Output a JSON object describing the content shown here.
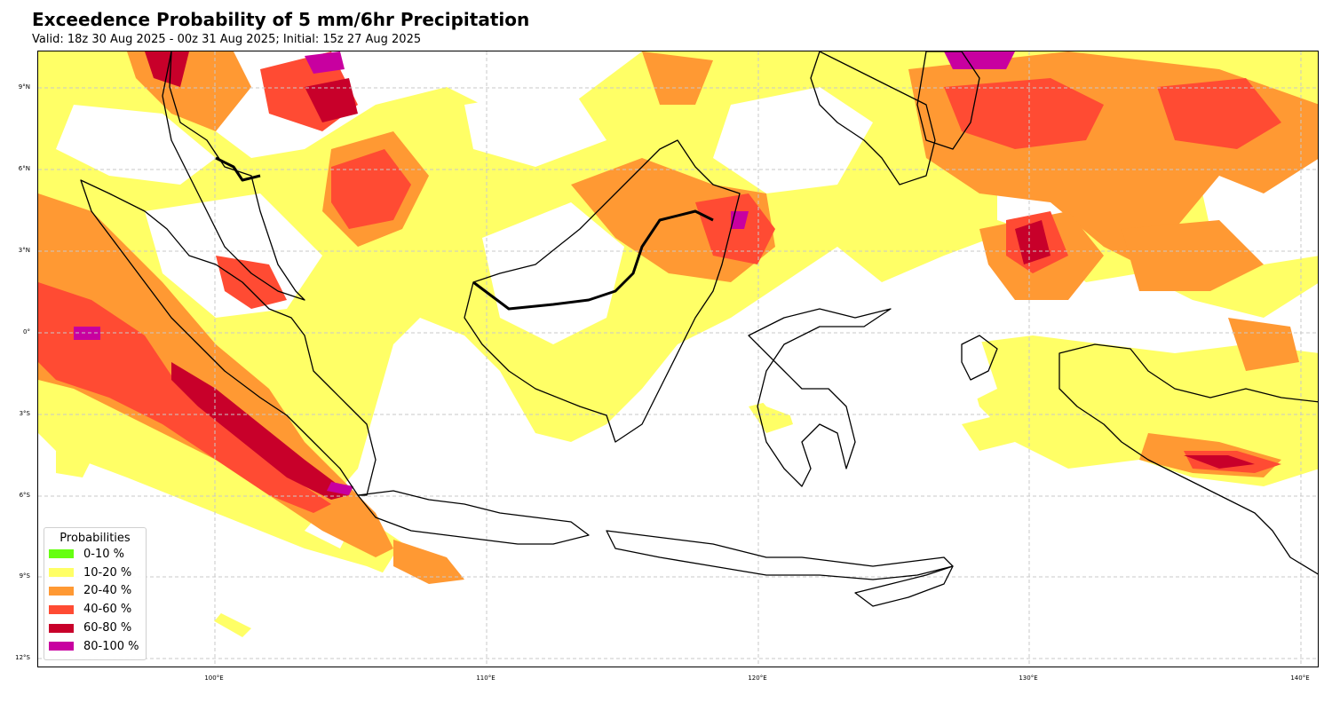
{
  "header": {
    "title": "Exceedence Probability of 5 mm/6hr Precipitation",
    "subtitle": "Valid: 18z 30 Aug 2025 - 00z 31 Aug 2025; Initial: 15z 27 Aug 2025"
  },
  "map": {
    "region": "Indonesia",
    "lon_range": [
      93.5,
      140.7
    ],
    "lat_range": [
      -12.3,
      10.2
    ],
    "lat_ticks": [
      "9°N",
      "6°N",
      "3°N",
      "0°",
      "3°S",
      "6°S",
      "9°S",
      "12°S"
    ],
    "lon_ticks": [
      "100°E",
      "110°E",
      "120°E",
      "130°E",
      "140°E"
    ],
    "gridlines": true
  },
  "legend": {
    "title": "Probabilities",
    "items": [
      {
        "label": "0-10 %",
        "color": "#66ff11"
      },
      {
        "label": "10-20 %",
        "color": "#ffff66"
      },
      {
        "label": "20-40 %",
        "color": "#ff9933"
      },
      {
        "label": "40-60 %",
        "color": "#ff4b33"
      },
      {
        "label": "60-80 %",
        "color": "#c8002a"
      },
      {
        "label": "80-100 %",
        "color": "#c800a0"
      }
    ]
  }
}
